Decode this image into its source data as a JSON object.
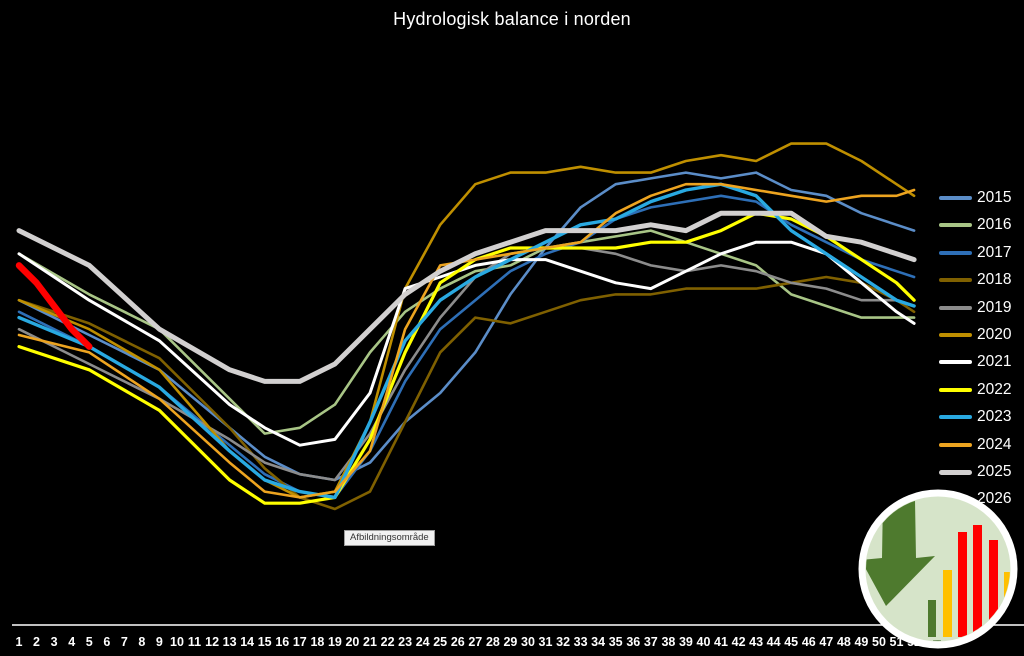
{
  "app": {
    "background": "#000000"
  },
  "chart_data": {
    "type": "line",
    "title": "Hydrologisk balance i norden",
    "xlabel": "",
    "ylabel": "",
    "x_unit": "uge (week number)",
    "x_ticks": [
      1,
      2,
      3,
      4,
      5,
      6,
      7,
      8,
      9,
      10,
      11,
      12,
      13,
      14,
      15,
      16,
      17,
      18,
      19,
      20,
      21,
      22,
      23,
      24,
      25,
      26,
      27,
      28,
      29,
      30,
      31,
      32,
      33,
      34,
      35,
      36,
      37,
      38,
      39,
      40,
      41,
      42,
      43,
      44,
      45,
      46,
      47,
      48,
      49,
      50,
      51,
      52
    ],
    "y_axis_visible": false,
    "ylim": [
      0,
      100
    ],
    "y_note": "No y-axis is drawn in the original chart; values are relative hydrological-balance levels (0-100) estimated from line positions.",
    "grid": false,
    "legend_position": "right",
    "series": [
      {
        "name": "2015",
        "color": "#5B8DC8",
        "stroke_width": 2.6,
        "weeks": [
          1,
          5,
          9,
          13,
          15,
          17,
          19,
          21,
          23,
          25,
          27,
          29,
          31,
          33,
          35,
          37,
          39,
          41,
          43,
          45,
          47,
          49,
          51,
          52
        ],
        "values": [
          56,
          50,
          44,
          34,
          29,
          26,
          25,
          28,
          35,
          40,
          47,
          57,
          65,
          72,
          76,
          77,
          78,
          77,
          78,
          75,
          74,
          71,
          69,
          68
        ]
      },
      {
        "name": "2016",
        "color": "#A8C586",
        "stroke_width": 2.6,
        "weeks": [
          1,
          5,
          9,
          13,
          15,
          17,
          19,
          21,
          23,
          25,
          27,
          29,
          31,
          33,
          35,
          37,
          39,
          41,
          43,
          45,
          47,
          49,
          51,
          52
        ],
        "values": [
          64,
          57,
          51,
          39,
          33,
          34,
          38,
          47,
          54,
          58,
          61,
          62,
          65,
          66,
          67,
          68,
          66,
          64,
          62,
          57,
          55,
          53,
          53,
          53
        ]
      },
      {
        "name": "2017",
        "color": "#2E6FB7",
        "stroke_width": 2.6,
        "weeks": [
          1,
          5,
          9,
          13,
          15,
          17,
          19,
          21,
          23,
          25,
          27,
          29,
          31,
          33,
          35,
          37,
          39,
          41,
          43,
          45,
          47,
          49,
          51,
          52
        ],
        "values": [
          54,
          48,
          41,
          31,
          26,
          23,
          22,
          30,
          42,
          51,
          56,
          61,
          64,
          66,
          70,
          72,
          73,
          74,
          73,
          69,
          66,
          63,
          61,
          60
        ]
      },
      {
        "name": "2018",
        "color": "#7F6000",
        "stroke_width": 2.6,
        "weeks": [
          1,
          5,
          9,
          13,
          15,
          17,
          19,
          21,
          23,
          25,
          27,
          29,
          31,
          33,
          35,
          37,
          39,
          41,
          43,
          45,
          47,
          49,
          51,
          52
        ],
        "values": [
          56,
          52,
          46,
          34,
          27,
          22,
          20,
          23,
          35,
          47,
          53,
          52,
          54,
          56,
          57,
          57,
          58,
          58,
          58,
          59,
          60,
          59,
          56,
          54
        ]
      },
      {
        "name": "2019",
        "color": "#8C8C8C",
        "stroke_width": 2.6,
        "weeks": [
          1,
          5,
          9,
          13,
          15,
          17,
          19,
          21,
          23,
          25,
          27,
          29,
          31,
          33,
          35,
          37,
          39,
          41,
          43,
          45,
          47,
          49,
          51,
          52
        ],
        "values": [
          51,
          45,
          39,
          32,
          28,
          26,
          25,
          33,
          44,
          53,
          60,
          64,
          65,
          65,
          64,
          62,
          61,
          62,
          61,
          59,
          58,
          56,
          56,
          55
        ]
      },
      {
        "name": "2020",
        "color": "#BF8F00",
        "stroke_width": 2.6,
        "weeks": [
          1,
          5,
          9,
          13,
          15,
          17,
          19,
          21,
          23,
          25,
          27,
          29,
          31,
          33,
          35,
          37,
          39,
          41,
          43,
          45,
          47,
          49,
          51,
          52
        ],
        "values": [
          56,
          51,
          44,
          30,
          25,
          22,
          23,
          35,
          58,
          69,
          76,
          78,
          78,
          79,
          78,
          78,
          80,
          81,
          80,
          83,
          83,
          80,
          76,
          74
        ]
      },
      {
        "name": "2021",
        "color": "#FFFFFF",
        "stroke_width": 3,
        "weeks": [
          1,
          5,
          9,
          13,
          15,
          17,
          19,
          21,
          23,
          25,
          27,
          29,
          31,
          33,
          35,
          37,
          39,
          41,
          43,
          45,
          47,
          49,
          51,
          52
        ],
        "values": [
          64,
          56,
          49,
          38,
          34,
          31,
          32,
          40,
          58,
          60,
          62,
          63,
          63,
          61,
          59,
          58,
          61,
          64,
          66,
          66,
          64,
          59,
          54,
          52
        ]
      },
      {
        "name": "2022",
        "color": "#FFFF00",
        "stroke_width": 3.2,
        "weeks": [
          1,
          5,
          9,
          13,
          15,
          17,
          19,
          21,
          23,
          25,
          27,
          29,
          31,
          33,
          35,
          37,
          39,
          41,
          43,
          45,
          47,
          49,
          51,
          52
        ],
        "values": [
          48,
          44,
          37,
          25,
          21,
          21,
          22,
          32,
          47,
          59,
          63,
          65,
          65,
          65,
          65,
          66,
          66,
          68,
          71,
          70,
          67,
          63,
          59,
          56
        ]
      },
      {
        "name": "2023",
        "color": "#29A9E1",
        "stroke_width": 3.4,
        "weeks": [
          1,
          5,
          9,
          13,
          15,
          17,
          19,
          21,
          23,
          25,
          27,
          29,
          31,
          33,
          35,
          37,
          39,
          41,
          43,
          45,
          47,
          49,
          51,
          52
        ],
        "values": [
          53,
          48,
          41,
          30,
          25,
          23,
          22,
          35,
          49,
          56,
          60,
          63,
          66,
          69,
          70,
          73,
          75,
          76,
          74,
          68,
          64,
          60,
          56,
          55
        ]
      },
      {
        "name": "2024",
        "color": "#EDA420",
        "stroke_width": 2.6,
        "weeks": [
          1,
          5,
          9,
          13,
          15,
          17,
          19,
          21,
          23,
          25,
          27,
          29,
          31,
          33,
          35,
          37,
          39,
          41,
          43,
          45,
          47,
          49,
          51,
          52
        ],
        "values": [
          50,
          47,
          39,
          28,
          23,
          22,
          23,
          30,
          51,
          62,
          63,
          64,
          65,
          66,
          71,
          74,
          76,
          76,
          75,
          74,
          73,
          74,
          74,
          75
        ]
      },
      {
        "name": "2025",
        "color": "#D2D0D0",
        "stroke_width": 5,
        "weeks": [
          1,
          5,
          9,
          13,
          15,
          17,
          19,
          21,
          23,
          25,
          27,
          29,
          31,
          33,
          35,
          37,
          39,
          41,
          43,
          45,
          47,
          49,
          51,
          52
        ],
        "values": [
          68,
          62,
          51,
          44,
          42,
          42,
          45,
          51,
          57,
          61,
          64,
          66,
          68,
          68,
          68,
          69,
          68,
          71,
          71,
          71,
          67,
          66,
          64,
          63
        ]
      },
      {
        "name": "2026",
        "color": "#FF0000",
        "stroke_width": 6.5,
        "weeks": [
          1,
          2,
          3,
          4,
          5
        ],
        "values": [
          62,
          59,
          55,
          51,
          48
        ]
      }
    ]
  },
  "tooltip": {
    "text": "Afbildningsområde"
  },
  "logo": {
    "circle_fill": "#D6E4C9",
    "ring_color": "#FFFFFF",
    "arrow_color": "#4E7A2E",
    "bar_colors": [
      "#4E7A2E",
      "#FFC000",
      "#FF0000",
      "#FF0000",
      "#FF0000",
      "#FFC000"
    ]
  }
}
